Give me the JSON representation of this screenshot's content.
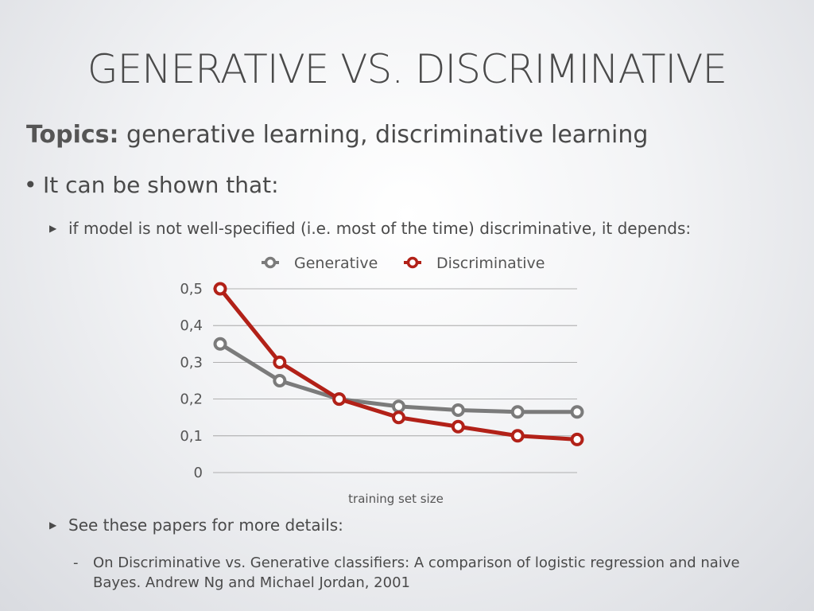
{
  "slide": {
    "title": "GENERATIVE VS. DISCRIMINATIVE",
    "topics_label": "Topics:",
    "topics_text": "generative learning, discriminative learning",
    "bullet": "It can be shown that:",
    "sub_point_1": "if model is not well-specified (i.e. most of the time) discriminative, it depends:",
    "sub_point_2": "See these papers for more details:",
    "reference": "On Discriminative vs. Generative classifiers: A comparison of logistic regression and naive Bayes. Andrew Ng and Michael Jordan, 2001"
  },
  "chart_data": {
    "type": "line",
    "x": [
      1,
      2,
      3,
      4,
      5,
      6,
      7
    ],
    "series": [
      {
        "name": "Generative",
        "values": [
          0.35,
          0.25,
          0.2,
          0.18,
          0.17,
          0.165,
          0.165
        ],
        "color": "#7b7b7b"
      },
      {
        "name": "Discriminative",
        "values": [
          0.5,
          0.3,
          0.2,
          0.15,
          0.125,
          0.1,
          0.09
        ],
        "color": "#b22118"
      }
    ],
    "yticks": [
      0,
      0.1,
      0.2,
      0.3,
      0.4,
      0.5
    ],
    "ytick_labels": [
      "0",
      "0,1",
      "0,2",
      "0,3",
      "0,4",
      "0,5"
    ],
    "ylim": [
      0,
      0.5
    ],
    "xlabel": "training set size",
    "ylabel": "",
    "title": "",
    "grid": true,
    "legend_position": "top-center"
  }
}
